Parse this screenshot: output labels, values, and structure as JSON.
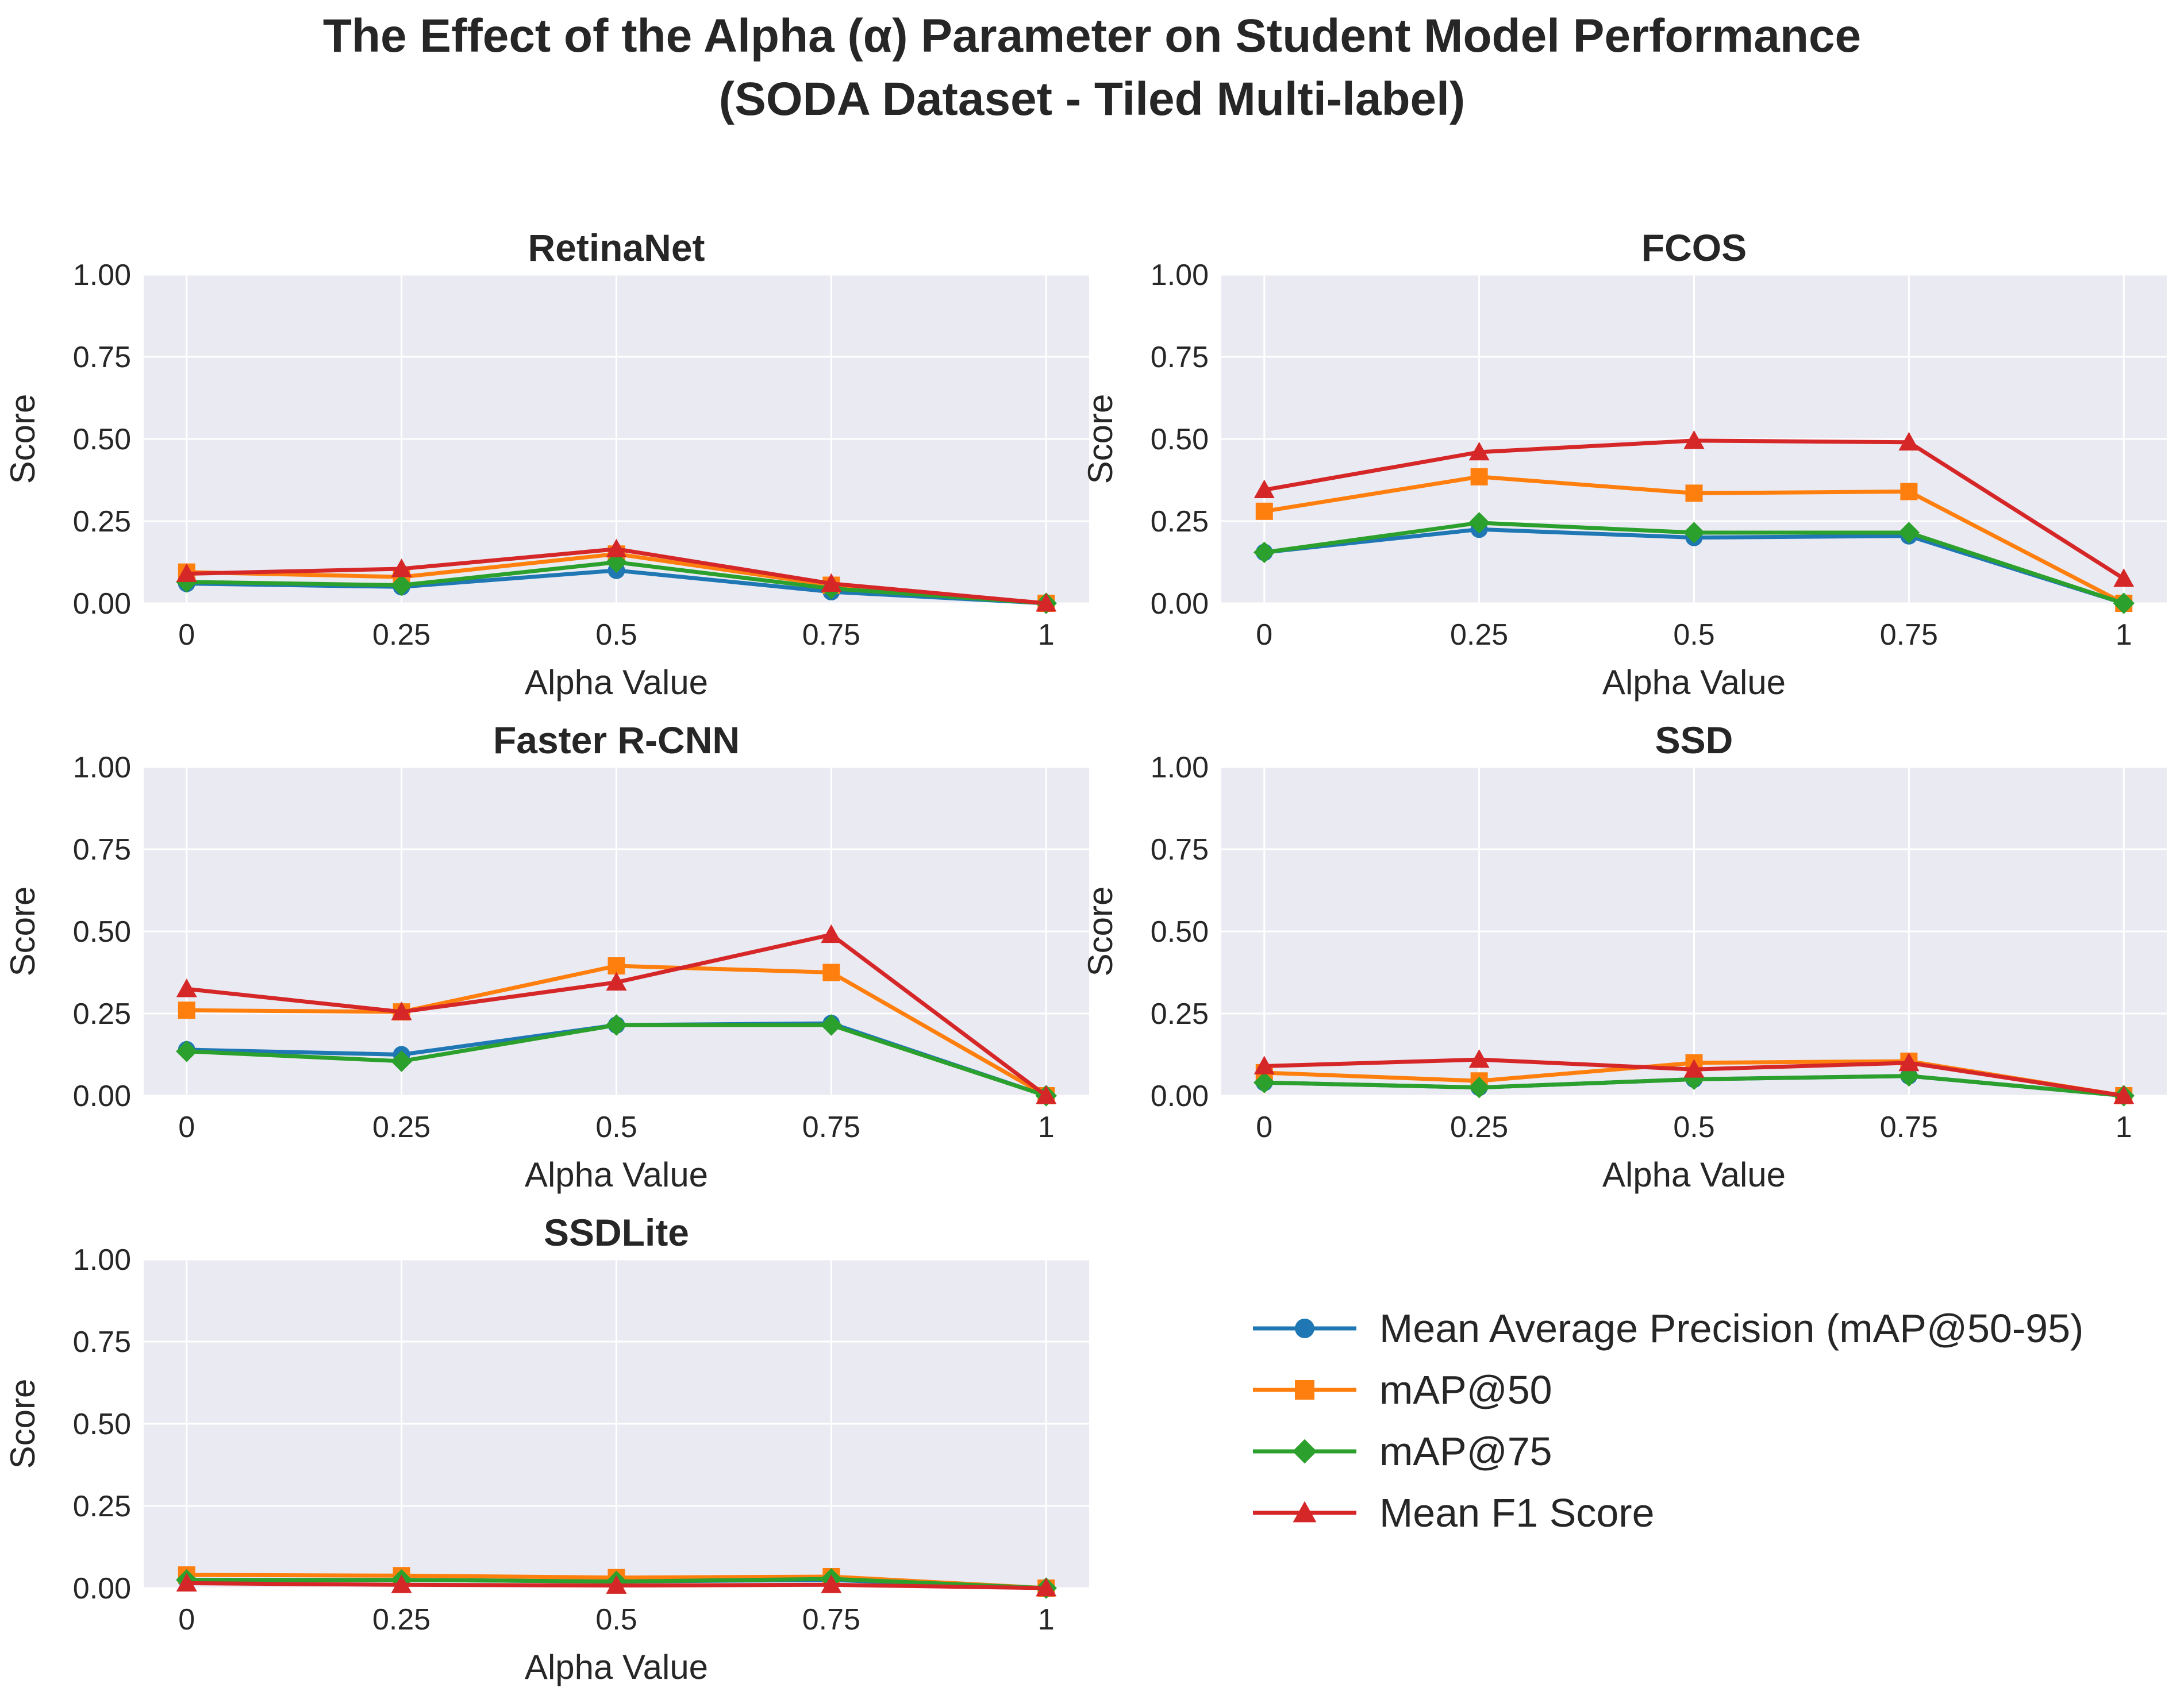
{
  "figure": {
    "title_line1": "The Effect of the Alpha (α) Parameter on Student Model Performance",
    "title_line2": "(SODA Dataset - Tiled Multi-label)"
  },
  "legend": {
    "placement": "lower-right",
    "entries": [
      {
        "name": "Mean Average Precision (mAP@50-95)",
        "color": "#1f77b4",
        "marker": "circle"
      },
      {
        "name": "mAP@50",
        "color": "#ff7f0e",
        "marker": "square"
      },
      {
        "name": "mAP@75",
        "color": "#2ca02c",
        "marker": "diamond"
      },
      {
        "name": "Mean F1 Score",
        "color": "#d62728",
        "marker": "triangle"
      }
    ]
  },
  "chart_data": [
    {
      "type": "line",
      "title": "RetinaNet",
      "xlabel": "Alpha Value",
      "ylabel": "Score",
      "x": [
        0,
        0.25,
        0.5,
        0.75,
        1
      ],
      "xtick_labels": [
        "0",
        "0.25",
        "0.5",
        "0.75",
        "1"
      ],
      "ylim": [
        0,
        1
      ],
      "yticks": [
        "0.00",
        "0.25",
        "0.50",
        "0.75",
        "1.00"
      ],
      "grid": true,
      "series": [
        {
          "name": "Mean Average Precision (mAP@50-95)",
          "values": [
            0.06,
            0.05,
            0.1,
            0.035,
            0.0
          ]
        },
        {
          "name": "mAP@50",
          "values": [
            0.095,
            0.08,
            0.15,
            0.055,
            0.0
          ]
        },
        {
          "name": "mAP@75",
          "values": [
            0.065,
            0.055,
            0.125,
            0.045,
            0.0
          ]
        },
        {
          "name": "Mean F1 Score",
          "values": [
            0.09,
            0.105,
            0.165,
            0.06,
            0.0
          ]
        }
      ]
    },
    {
      "type": "line",
      "title": "FCOS",
      "xlabel": "Alpha Value",
      "ylabel": "Score",
      "x": [
        0,
        0.25,
        0.5,
        0.75,
        1
      ],
      "xtick_labels": [
        "0",
        "0.25",
        "0.5",
        "0.75",
        "1"
      ],
      "ylim": [
        0,
        1
      ],
      "yticks": [
        "0.00",
        "0.25",
        "0.50",
        "0.75",
        "1.00"
      ],
      "grid": true,
      "series": [
        {
          "name": "Mean Average Precision (mAP@50-95)",
          "values": [
            0.155,
            0.225,
            0.2,
            0.205,
            0.0
          ]
        },
        {
          "name": "mAP@50",
          "values": [
            0.28,
            0.385,
            0.335,
            0.34,
            0.0
          ]
        },
        {
          "name": "mAP@75",
          "values": [
            0.155,
            0.245,
            0.215,
            0.215,
            0.0
          ]
        },
        {
          "name": "Mean F1 Score",
          "values": [
            0.345,
            0.46,
            0.495,
            0.49,
            0.075
          ]
        }
      ]
    },
    {
      "type": "line",
      "title": "Faster R-CNN",
      "xlabel": "Alpha Value",
      "ylabel": "Score",
      "x": [
        0,
        0.25,
        0.5,
        0.75,
        1
      ],
      "xtick_labels": [
        "0",
        "0.25",
        "0.5",
        "0.75",
        "1"
      ],
      "ylim": [
        0,
        1
      ],
      "yticks": [
        "0.00",
        "0.25",
        "0.50",
        "0.75",
        "1.00"
      ],
      "grid": true,
      "series": [
        {
          "name": "Mean Average Precision (mAP@50-95)",
          "values": [
            0.14,
            0.125,
            0.215,
            0.22,
            0.0
          ]
        },
        {
          "name": "mAP@50",
          "values": [
            0.26,
            0.255,
            0.395,
            0.375,
            0.0
          ]
        },
        {
          "name": "mAP@75",
          "values": [
            0.135,
            0.105,
            0.215,
            0.215,
            0.0
          ]
        },
        {
          "name": "Mean F1 Score",
          "values": [
            0.325,
            0.255,
            0.345,
            0.49,
            0.0
          ]
        }
      ]
    },
    {
      "type": "line",
      "title": "SSD",
      "xlabel": "Alpha Value",
      "ylabel": "Score",
      "x": [
        0,
        0.25,
        0.5,
        0.75,
        1
      ],
      "xtick_labels": [
        "0",
        "0.25",
        "0.5",
        "0.75",
        "1"
      ],
      "ylim": [
        0,
        1
      ],
      "yticks": [
        "0.00",
        "0.25",
        "0.50",
        "0.75",
        "1.00"
      ],
      "grid": true,
      "series": [
        {
          "name": "Mean Average Precision (mAP@50-95)",
          "values": [
            0.04,
            0.025,
            0.05,
            0.06,
            0.0
          ]
        },
        {
          "name": "mAP@50",
          "values": [
            0.07,
            0.045,
            0.1,
            0.105,
            0.0
          ]
        },
        {
          "name": "mAP@75",
          "values": [
            0.04,
            0.025,
            0.05,
            0.06,
            0.0
          ]
        },
        {
          "name": "Mean F1 Score",
          "values": [
            0.09,
            0.11,
            0.08,
            0.1,
            0.0
          ]
        }
      ]
    },
    {
      "type": "line",
      "title": "SSDLite",
      "xlabel": "Alpha Value",
      "ylabel": "Score",
      "x": [
        0,
        0.25,
        0.5,
        0.75,
        1
      ],
      "xtick_labels": [
        "0",
        "0.25",
        "0.5",
        "0.75",
        "1"
      ],
      "ylim": [
        0,
        1
      ],
      "yticks": [
        "0.00",
        "0.25",
        "0.50",
        "0.75",
        "1.00"
      ],
      "grid": true,
      "series": [
        {
          "name": "Mean Average Precision (mAP@50-95)",
          "values": [
            0.025,
            0.025,
            0.02,
            0.025,
            0.0
          ]
        },
        {
          "name": "mAP@50",
          "values": [
            0.04,
            0.038,
            0.032,
            0.035,
            0.0
          ]
        },
        {
          "name": "mAP@75",
          "values": [
            0.025,
            0.025,
            0.02,
            0.028,
            0.0
          ]
        },
        {
          "name": "Mean F1 Score",
          "values": [
            0.015,
            0.01,
            0.008,
            0.01,
            0.0
          ]
        }
      ]
    }
  ]
}
